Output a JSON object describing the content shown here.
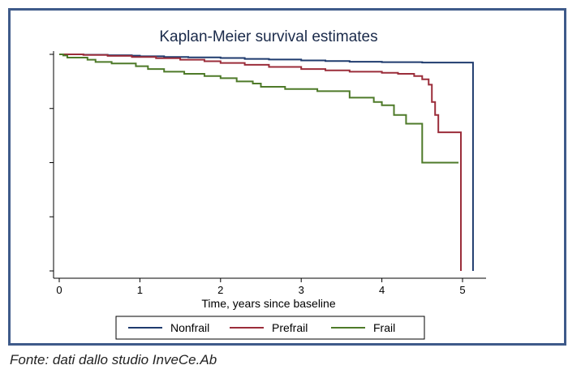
{
  "chart_data": {
    "type": "line",
    "title": "Kaplan-Meier survival estimates",
    "xlabel": "Time, years since baseline",
    "ylabel": "",
    "xlim": [
      0,
      5.2
    ],
    "ylim": [
      0,
      1
    ],
    "x_ticks": [
      0,
      1,
      2,
      3,
      4,
      5
    ],
    "y_ticks": [
      0,
      0.25,
      0.5,
      0.75,
      1
    ],
    "y_tick_labels_shown": false,
    "grid": false,
    "legend_position": "bottom",
    "series": [
      {
        "name": "Nonfrail",
        "color": "#1f3b6e",
        "x": [
          0,
          0.3,
          0.6,
          0.9,
          1.0,
          1.3,
          1.6,
          2.0,
          2.3,
          2.6,
          3.0,
          3.3,
          3.6,
          4.0,
          4.5,
          5.13,
          5.13
        ],
        "y": [
          1.0,
          0.998,
          0.996,
          0.994,
          0.991,
          0.988,
          0.986,
          0.983,
          0.979,
          0.976,
          0.972,
          0.969,
          0.966,
          0.964,
          0.962,
          0.961,
          0.0
        ]
      },
      {
        "name": "Prefrail",
        "color": "#9b2d3a",
        "x": [
          0,
          0.3,
          0.6,
          0.9,
          1.2,
          1.5,
          1.8,
          2.0,
          2.3,
          2.6,
          3.0,
          3.3,
          3.6,
          4.0,
          4.2,
          4.4,
          4.5,
          4.58,
          4.62,
          4.66,
          4.7,
          4.98,
          4.98
        ],
        "y": [
          1.0,
          0.997,
          0.993,
          0.988,
          0.982,
          0.975,
          0.968,
          0.96,
          0.952,
          0.942,
          0.932,
          0.926,
          0.92,
          0.915,
          0.91,
          0.9,
          0.885,
          0.86,
          0.78,
          0.72,
          0.64,
          0.64,
          0.0
        ]
      },
      {
        "name": "Frail",
        "color": "#4e7a29",
        "x": [
          0,
          0.05,
          0.1,
          0.35,
          0.45,
          0.65,
          0.95,
          1.1,
          1.3,
          1.55,
          1.8,
          2.0,
          2.2,
          2.4,
          2.5,
          2.8,
          3.2,
          3.6,
          3.9,
          4.0,
          4.15,
          4.3,
          4.5,
          4.95
        ],
        "y": [
          1.0,
          0.995,
          0.985,
          0.975,
          0.965,
          0.958,
          0.945,
          0.932,
          0.92,
          0.91,
          0.9,
          0.89,
          0.875,
          0.865,
          0.85,
          0.84,
          0.83,
          0.8,
          0.78,
          0.765,
          0.72,
          0.68,
          0.5,
          0.5
        ]
      }
    ]
  },
  "caption": "Fonte: dati dallo studio InveCe.Ab"
}
